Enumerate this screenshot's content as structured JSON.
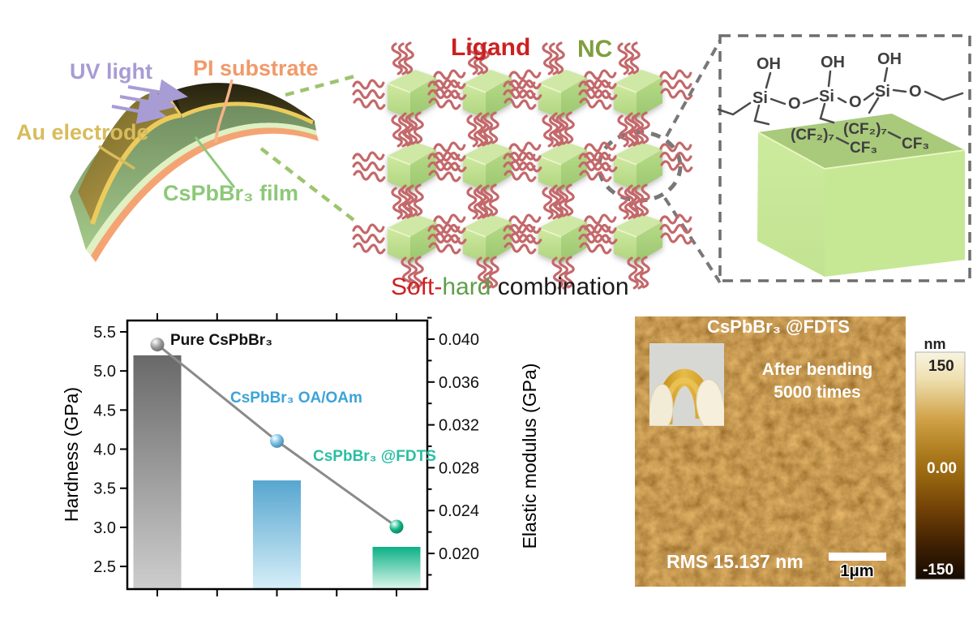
{
  "device": {
    "uv_light": "UV light",
    "pi_substrate": "PI substrate",
    "au_electrode": "Au electrode",
    "film": "CsPbBr₃ film",
    "colors": {
      "uv": "#a89cd4",
      "pi": "#f09a6a",
      "au": "#d8bc5c",
      "film": "#8cc878",
      "gold_stripe": "#eccb5c",
      "pi_layer": "#f4a473",
      "film_layer": "#8fb27a"
    }
  },
  "nc_array": {
    "ligand_label": "Ligand",
    "nc_label": "NC",
    "caption": {
      "soft": "Soft-",
      "hard": "hard",
      "rest": " combination"
    },
    "colors": {
      "ligand_label": "#cc2020",
      "nc_label": "#7f9e3f",
      "soft": "#cc2222",
      "hard": "#5f9e4a",
      "rest": "#1a1a1a",
      "cube": "#c9e69c",
      "ligand": "#c4686a"
    },
    "grid": {
      "rows": 3,
      "cols": 4
    }
  },
  "fdts_panel": {
    "atoms": {
      "oh1": "OH",
      "oh2": "OH",
      "oh3": "OH",
      "si1": "Si",
      "si2": "Si",
      "si3": "Si",
      "o1": "O",
      "o2": "O",
      "o3": "O",
      "cf2_1": "(CF₂)₇",
      "cf2_2": "(CF₂)₇",
      "cf3_1": "CF₃",
      "cf3_2": "CF₃"
    }
  },
  "chart_data": {
    "type": "bar",
    "categories": [
      "Pure CsPbBr₃",
      "CsPbBr₃ OA/OAm",
      "CsPbBr₃ @FDTS"
    ],
    "series": [
      {
        "name": "Hardness",
        "type": "bar",
        "axis": "left",
        "values": [
          5.2,
          3.6,
          2.75
        ]
      },
      {
        "name": "Elastic modulus",
        "type": "line",
        "axis": "right",
        "values": [
          0.0395,
          0.0305,
          0.0225
        ]
      }
    ],
    "left_axis": {
      "label": "Hardness  (GPa)",
      "ticks": [
        "2.5",
        "3.0",
        "3.5",
        "4.0",
        "4.5",
        "5.0",
        "5.5"
      ],
      "range": [
        2.21,
        5.645
      ]
    },
    "right_axis": {
      "label": "Elastic modulus (GPa)",
      "ticks": [
        "0.020",
        "0.024",
        "0.028",
        "0.032",
        "0.036",
        "0.040"
      ],
      "range": [
        0.01667,
        0.04174
      ]
    },
    "annotations": [
      {
        "text": "Pure CsPbBr₃",
        "color": "#111111"
      },
      {
        "text": "CsPbBr₃ OA/OAm",
        "color": "#3da3d8"
      },
      {
        "text": "CsPbBr₃ @FDTS",
        "color": "#28bfa2"
      }
    ],
    "bar_gradients": [
      [
        "#696969",
        "#cdcdcd"
      ],
      [
        "#57a6d0",
        "#d6eef8"
      ],
      [
        "#0cb086",
        "#dbf6eb"
      ]
    ],
    "point_colors": [
      "#9a9a9a",
      "#6fbbe4",
      "#10b586"
    ],
    "line_color": "#8a8a8a",
    "grid": false,
    "legend": "none"
  },
  "afm": {
    "title": "CsPbBr₃ @FDTS",
    "caption_line1": "After bending",
    "caption_line2": "5000 times",
    "rms": "RMS 15.137 nm",
    "scale_label": "1μm",
    "colorbar": {
      "unit": "nm",
      "max": "150",
      "mid": "0.00",
      "min": "-150"
    }
  }
}
